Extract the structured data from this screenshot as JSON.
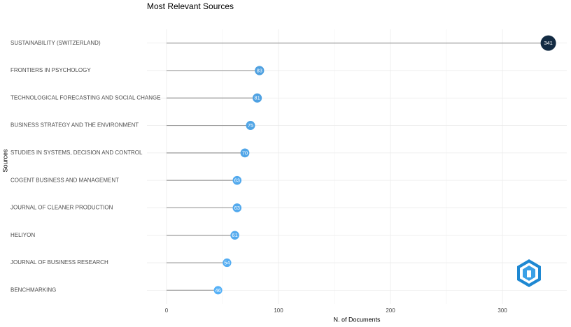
{
  "chart_data": {
    "type": "lollipop",
    "title": "Most Relevant Sources",
    "x_label": "N. of Documents",
    "y_label": "Sources",
    "categories": [
      "SUSTAINABILITY (SWITZERLAND)",
      "FRONTIERS IN PSYCHOLOGY",
      "TECHNOLOGICAL FORECASTING AND SOCIAL CHANGE",
      "BUSINESS STRATEGY AND THE ENVIRONMENT",
      "STUDIES IN SYSTEMS, DECISION AND CONTROL",
      "COGENT BUSINESS AND MANAGEMENT",
      "JOURNAL OF CLEANER PRODUCTION",
      "HELIYON",
      "JOURNAL OF BUSINESS RESEARCH",
      "BENCHMARKING"
    ],
    "values": [
      341,
      83,
      81,
      75,
      70,
      63,
      63,
      61,
      54,
      46
    ],
    "xlim": [
      -17.5,
      357.5
    ],
    "xticks": [
      0,
      100,
      200,
      300
    ],
    "color_scale": [
      "#56B1F7",
      "#132B43"
    ],
    "stem_color": "#999999",
    "grid": true
  }
}
